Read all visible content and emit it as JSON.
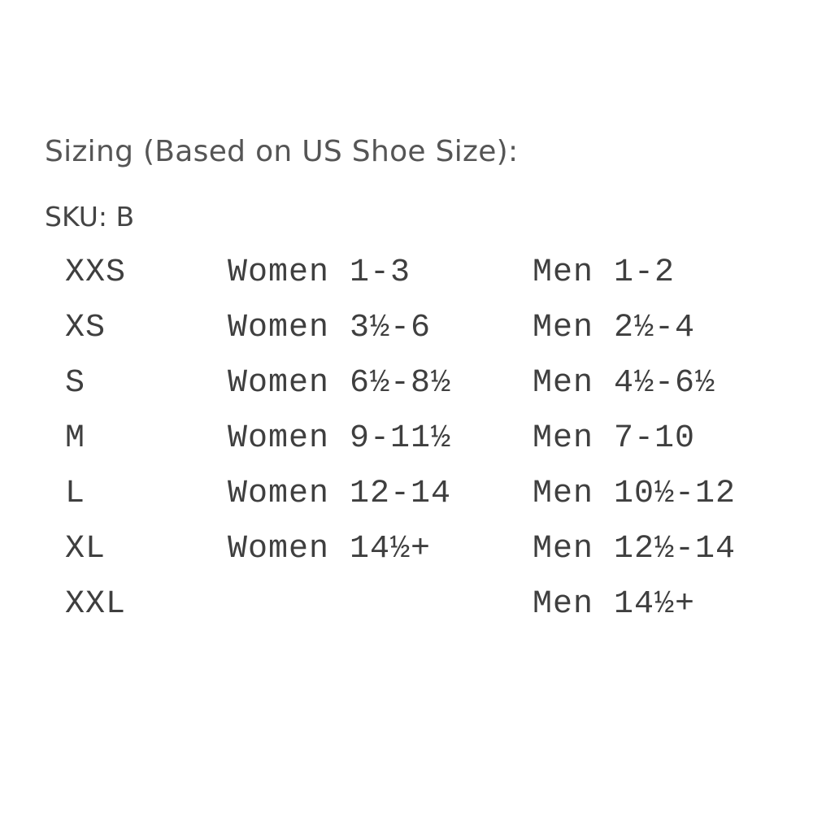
{
  "heading": "Sizing (Based on US Shoe Size):",
  "sku": "SKU: B",
  "rows": [
    {
      "size": "XXS",
      "women": "Women 1-3",
      "men": "Men 1-2"
    },
    {
      "size": "XS",
      "women": "Women 3½-6",
      "men": "Men 2½-4"
    },
    {
      "size": "S",
      "women": "Women 6½-8½",
      "men": "Men 4½-6½"
    },
    {
      "size": "M",
      "women": "Women 9-11½",
      "men": "Men 7-10"
    },
    {
      "size": "L",
      "women": "Women 12-14",
      "men": "Men 10½-12"
    },
    {
      "size": "XL",
      "women": "Women 14½+",
      "men": "Men 12½-14"
    },
    {
      "size": "XXL",
      "women": "",
      "men": "Men 14½+"
    }
  ]
}
